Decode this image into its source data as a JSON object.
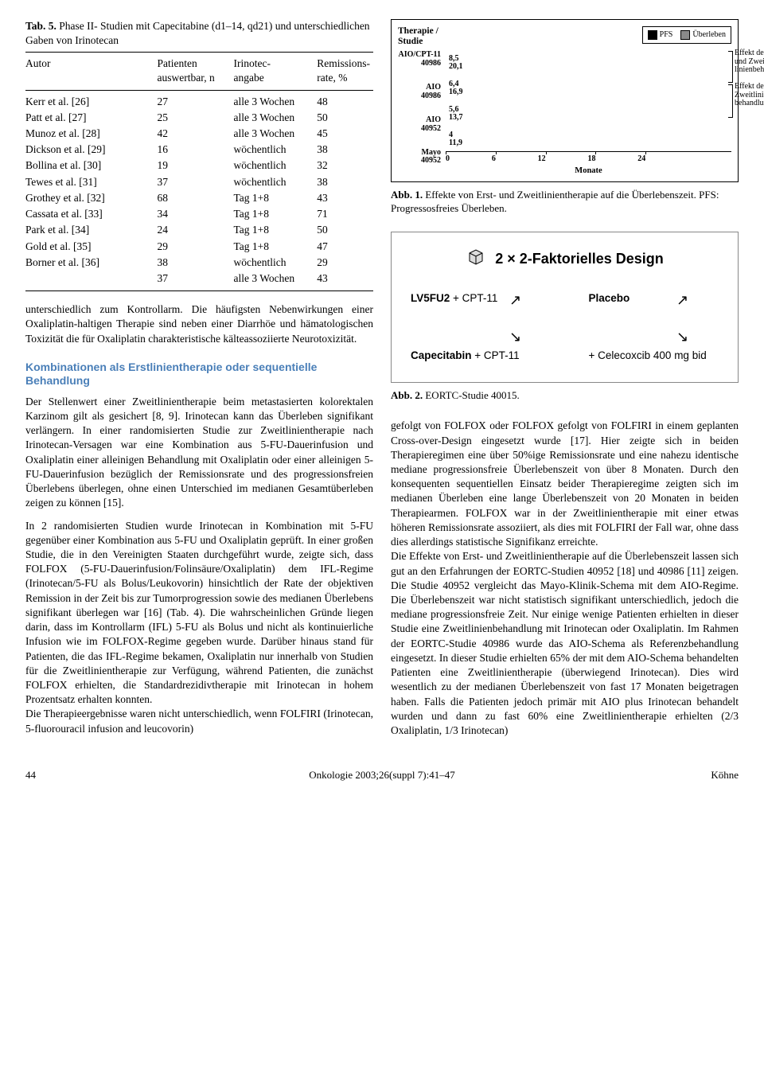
{
  "table5": {
    "title_bold": "Tab. 5.",
    "title_rest": " Phase II- Studien mit Capecitabine (d1–14, qd21) und unterschiedlichen Gaben von Irinotecan",
    "head": {
      "c1": "Autor",
      "c2a": "Patienten",
      "c2b": "auswertbar, n",
      "c3a": "Irinotec-",
      "c3b": "angabe",
      "c4a": "Remissions-",
      "c4b": "rate, %"
    },
    "rows": [
      [
        "Kerr et al. [26]",
        "27",
        "alle 3 Wochen",
        "48"
      ],
      [
        "Patt et al. [27]",
        "25",
        "alle 3 Wochen",
        "50"
      ],
      [
        "Munoz et al. [28]",
        "42",
        "alle 3 Wochen",
        "45"
      ],
      [
        "Dickson et al. [29]",
        "16",
        "wöchentlich",
        "38"
      ],
      [
        "Bollina et al. [30]",
        "19",
        "wöchentlich",
        "32"
      ],
      [
        "Tewes et al. [31]",
        "37",
        "wöchentlich",
        "38"
      ],
      [
        "Grothey et al. [32]",
        "68",
        "Tag 1+8",
        "43"
      ],
      [
        "Cassata et al. [33]",
        "34",
        "Tag 1+8",
        "71"
      ],
      [
        "Park et al. [34]",
        "24",
        "Tag 1+8",
        "50"
      ],
      [
        "Gold et al. [35]",
        "29",
        "Tag 1+8",
        "47"
      ],
      [
        "Borner et al. [36]",
        "38",
        "wöchentlich",
        "29"
      ],
      [
        "",
        "37",
        "alle 3 Wochen",
        "43"
      ]
    ]
  },
  "para_left1": "unterschiedlich zum Kontrollarm. Die häufigsten Nebenwirkungen einer Oxaliplatin-haltigen Therapie sind neben einer Diarrhöe und hämatologischen Toxizität die für Oxaliplatin charakteristische kälteassoziierte Neurotoxizität.",
  "section_left": "Kombinationen als Erstlinientherapie oder sequentielle Behandlung",
  "para_left2": "Der Stellenwert einer Zweitlinientherapie beim metastasierten kolorektalen Karzinom gilt als gesichert [8, 9]. Irinotecan kann das Überleben signifikant verlängern. In einer randomisierten Studie zur Zweitlinientherapie nach Irinotecan-Versagen war eine Kombination aus 5-FU-Dauerinfusion und Oxaliplatin einer alleinigen Behandlung mit Oxaliplatin oder einer alleinigen 5-FU-Dauerinfusion bezüglich der Remissionsrate und des progressionsfreien Überlebens überlegen, ohne einen Unterschied im medianen Gesamtüberleben zeigen zu können [15].",
  "para_left3": "In 2 randomisierten Studien wurde Irinotecan in Kombination mit 5-FU gegenüber einer Kombination aus 5-FU und Oxaliplatin geprüft. In einer großen Studie, die in den Vereinigten Staaten durchgeführt wurde, zeigte sich, dass FOLFOX (5-FU-Dauerinfusion/Folinsäure/Oxaliplatin) dem IFL-Regime (Irinotecan/5-FU als Bolus/Leukovorin) hinsichtlich der Rate der objektiven Remission in der Zeit bis zur Tumorprogression sowie des medianen Überlebens signifikant überlegen war [16] (Tab. 4). Die wahrscheinlichen Gründe liegen darin, dass im Kontrollarm (IFL) 5-FU als Bolus und nicht als kontinuierliche Infusion wie im FOLFOX-Regime gegeben wurde. Darüber hinaus stand für Patienten, die das IFL-Regime bekamen, Oxaliplatin nur innerhalb von Studien für die Zweitlinientherapie zur Verfügung, während Patienten, die zunächst FOLFOX erhielten, die Standardrezidivtherapie mit Irinotecan in hohem Prozentsatz erhalten konnten.",
  "para_left4": "Die Therapieergebnisse waren nicht unterschiedlich, wenn FOLFIRI (Irinotecan, 5-fluorouracil infusion and leucovorin)",
  "chart": {
    "title": "Therapie /\nStudie",
    "legend": {
      "pfs": "PFS",
      "uberleben": "Überleben"
    },
    "colors": {
      "pfs": "#000000",
      "uberleben": "#8a8a8a"
    },
    "xlim": [
      0,
      24
    ],
    "xticks": [
      0,
      6,
      12,
      18,
      24
    ],
    "xlabel": "Monate",
    "categories": [
      {
        "label": "AIO/CPT-11\n40986",
        "pfs": 8.5,
        "os": 20.1
      },
      {
        "label": "AIO\n40986",
        "pfs": 6.4,
        "os": 16.9
      },
      {
        "label": "AIO\n40952",
        "pfs": 5.6,
        "os": 13.7
      },
      {
        "label": "Mayo\n40952",
        "pfs": 4.0,
        "os": 11.9,
        "pfs_label": "4"
      }
    ],
    "annot1": "Effekt der Erst-\nund Zweit-\nlinienbehandlung",
    "annot2": "Effekt der\nZweitlinien-\nbehandlung"
  },
  "fig1_caption_bold": "Abb. 1.",
  "fig1_caption_rest": " Effekte von Erst- und Zweitlinientherapie auf die Überlebenszeit. PFS: Progressosfreies Überleben.",
  "factorial": {
    "title": "2 × 2-Faktorielles Design",
    "tl_b": "LV5FU2 ",
    "tl_n": "+ CPT-11",
    "tr": "Placebo",
    "bl_b": "Capecitabin ",
    "bl_n": "+ CPT-11",
    "br": "+ Celecoxcib 400 mg bid"
  },
  "fig2_caption_bold": "Abb. 2.",
  "fig2_caption_rest": " EORTC-Studie 40015.",
  "para_right1": "gefolgt von FOLFOX oder FOLFOX gefolgt von FOLFIRI in einem geplanten Cross-over-Design eingesetzt wurde [17]. Hier zeigte sich in beiden Therapieregimen eine über 50%ige Remissionsrate und eine nahezu identische mediane progressionsfreie Überlebenszeit von über 8 Monaten. Durch den konsequenten sequentiellen Einsatz beider Therapieregime zeigten sich im medianen Überleben eine lange Überlebenszeit von 20 Monaten in beiden Therapiearmen. FOLFOX war in der Zweitlinientherapie mit einer etwas höheren Remissionsrate assoziiert, als dies mit FOLFIRI der Fall war, ohne dass dies allerdings statistische Signifikanz erreichte.",
  "para_right2": "Die Effekte von Erst- und Zweitlinientherapie auf die Überlebenszeit lassen sich gut an den Erfahrungen der EORTC-Studien 40952 [18] und 40986 [11] zeigen. Die Studie 40952 vergleicht das Mayo-Klinik-Schema mit dem AIO-Regime. Die Überlebenszeit war nicht statistisch signifikant unterschiedlich, jedoch die mediane progressionsfreie Zeit. Nur einige wenige Patienten erhielten in dieser Studie eine Zweitlinienbehandlung mit Irinotecan oder Oxaliplatin. Im Rahmen der EORTC-Studie 40986 wurde das AIO-Schema als Referenzbehandlung eingesetzt. In dieser Studie erhielten 65% der mit dem AIO-Schema behandelten Patienten eine Zweitlinientherapie (überwiegend Irinotecan). Dies wird wesentlich zu der medianen Überlebenszeit von fast 17 Monaten beigetragen haben. Falls die Patienten jedoch primär mit AIO plus Irinotecan behandelt wurden und dann zu fast 60% eine Zweitlinientherapie erhielten (2/3 Oxaliplatin, 1/3 Irinotecan)",
  "footer": {
    "page": "44",
    "center": "Onkologie 2003;26(suppl 7):41–47",
    "right": "Köhne"
  }
}
